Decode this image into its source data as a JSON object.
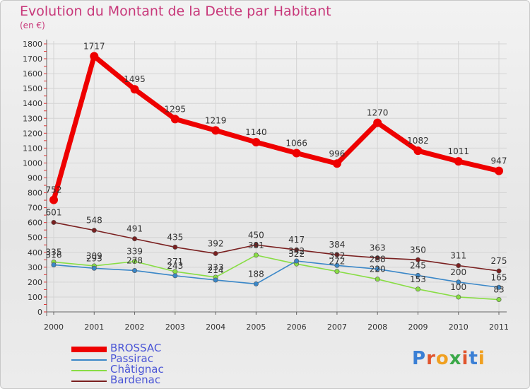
{
  "title": "Evolution du Montant de la Dette par Habitant",
  "unit": "(en €)",
  "logo": {
    "text": "Proxiti",
    "colors": [
      "#3a7fd5",
      "#e0552e",
      "#f0a020",
      "#3aa848",
      "#e0552e",
      "#3a7fd5",
      "#f0a020"
    ]
  },
  "chart_data": {
    "type": "line",
    "x": [
      "2000",
      "2001",
      "2002",
      "2003",
      "2004",
      "2005",
      "2006",
      "2007",
      "2008",
      "2009",
      "2010",
      "2011"
    ],
    "ylim": [
      0,
      1800
    ],
    "yticks": [
      0,
      100,
      200,
      300,
      400,
      500,
      600,
      700,
      800,
      900,
      1000,
      1100,
      1200,
      1300,
      1400,
      1500,
      1600,
      1700,
      1800
    ],
    "grid": true,
    "legend_position": "bottom-left",
    "series": [
      {
        "name": "BROSSAC",
        "color": "#ee0000",
        "values": [
          752,
          1717,
          1495,
          1295,
          1219,
          1140,
          1066,
          996,
          1270,
          1082,
          1011,
          947
        ]
      },
      {
        "name": "Passirac",
        "color": "#3a87c8",
        "values": [
          316,
          293,
          278,
          243,
          214,
          188,
          342,
          312,
          288,
          245,
          200,
          165
        ]
      },
      {
        "name": "Châtignac",
        "color": "#88dd44",
        "values": [
          335,
          309,
          339,
          271,
          233,
          381,
          322,
          272,
          220,
          153,
          100,
          83
        ]
      },
      {
        "name": "Bardenac",
        "color": "#7a2020",
        "values": [
          601,
          548,
          491,
          435,
          392,
          450,
          417,
          384,
          363,
          350,
          311,
          275
        ]
      }
    ]
  }
}
